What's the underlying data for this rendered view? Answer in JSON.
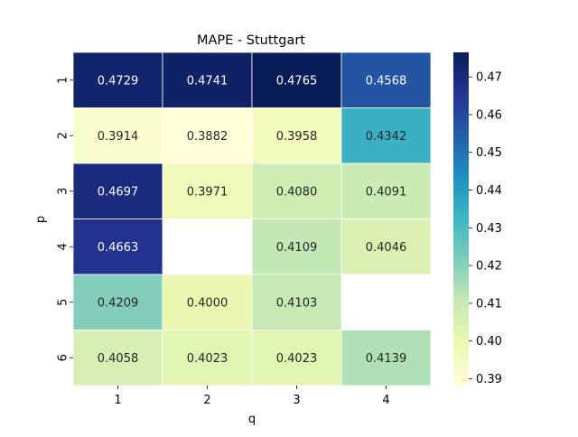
{
  "chart_data": {
    "type": "heatmap",
    "title": "MAPE - Stuttgart",
    "xlabel": "q",
    "ylabel": "p",
    "x_categories": [
      "1",
      "2",
      "3",
      "4"
    ],
    "y_categories": [
      "1",
      "2",
      "3",
      "4",
      "5",
      "6"
    ],
    "values": [
      [
        0.4729,
        0.4741,
        0.4765,
        0.4568
      ],
      [
        0.3914,
        0.3882,
        0.3958,
        0.4342
      ],
      [
        0.4697,
        0.3971,
        0.408,
        0.4091
      ],
      [
        0.4663,
        null,
        0.4109,
        0.4046
      ],
      [
        0.4209,
        0.4,
        0.4103,
        null
      ],
      [
        0.4058,
        0.4023,
        0.4023,
        0.4139
      ]
    ],
    "cell_labels": [
      [
        "0.4729",
        "0.4741",
        "0.4765",
        "0.4568"
      ],
      [
        "0.3914",
        "0.3882",
        "0.3958",
        "0.4342"
      ],
      [
        "0.4697",
        "0.3971",
        "0.4080",
        "0.4091"
      ],
      [
        "0.4663",
        "",
        "0.4109",
        "0.4046"
      ],
      [
        "0.4209",
        "0.4000",
        "0.4103",
        ""
      ],
      [
        "0.4058",
        "0.4023",
        "0.4023",
        "0.4139"
      ]
    ],
    "colorbar": {
      "vmin": 0.3882,
      "vmax": 0.4765,
      "ticks": [
        0.39,
        0.4,
        0.41,
        0.42,
        0.43,
        0.44,
        0.45,
        0.46,
        0.47
      ],
      "tick_labels": [
        "0.39",
        "0.40",
        "0.41",
        "0.42",
        "0.43",
        "0.44",
        "0.45",
        "0.46",
        "0.47"
      ]
    },
    "colormap": "YlGnBu",
    "grid": false
  }
}
